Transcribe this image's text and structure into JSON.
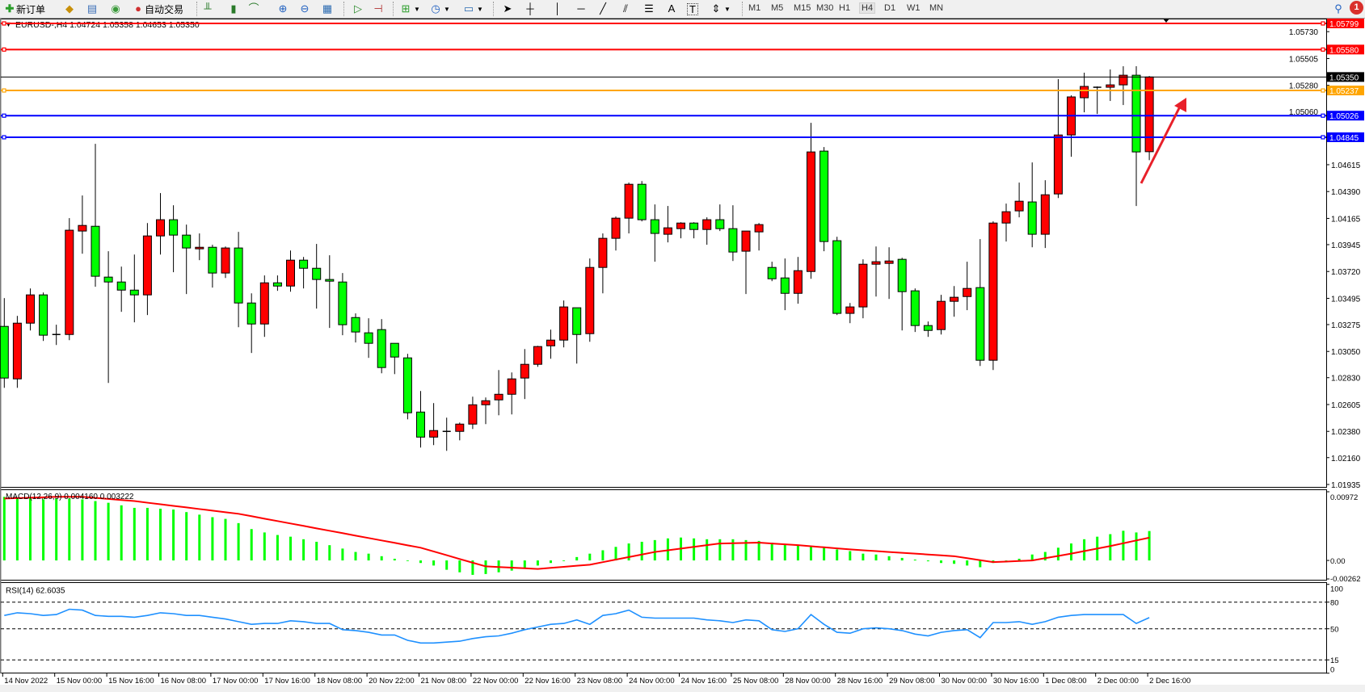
{
  "toolbar": {
    "new_order": "新订单",
    "auto_trading": "自动交易",
    "timeframes": [
      "M1",
      "M5",
      "M15",
      "M30",
      "H1",
      "H4",
      "D1",
      "W1",
      "MN"
    ],
    "selected_timeframe": "H4",
    "notifications": "1",
    "text_tool": "A",
    "label_tool": "T"
  },
  "chart": {
    "symbol_header": "EURUSD-,H4  1.04724 1.05358 1.04653 1.05350",
    "colors": {
      "bull": "#ff0000",
      "bear": "#00ff00",
      "wick": "#000000"
    },
    "price_ticks": [
      "1.05730",
      "1.05505",
      "1.05280",
      "1.05060",
      "1.04615",
      "1.04390",
      "1.04165",
      "1.03945",
      "1.03720",
      "1.03495",
      "1.03275",
      "1.03050",
      "1.02830",
      "1.02605",
      "1.02380",
      "1.02160",
      "1.01935"
    ],
    "levels": [
      {
        "label": "1.05799",
        "price": 1.05799,
        "color": "#ff0000"
      },
      {
        "label": "1.05580",
        "price": 1.0558,
        "color": "#ff0000"
      },
      {
        "label": "1.05237",
        "price": 1.05237,
        "color": "#ffa500"
      },
      {
        "label": "1.05026",
        "price": 1.05026,
        "color": "#0000ff"
      },
      {
        "label": "1.04845",
        "price": 1.04845,
        "color": "#0000ff"
      }
    ],
    "current_price": {
      "label": "1.05350",
      "price": 1.0535,
      "color": "#000000"
    },
    "annotation_arrow_color": "#e8202a",
    "time_labels": [
      "14 Nov 2022",
      "15 Nov 00:00",
      "15 Nov 16:00",
      "16 Nov 08:00",
      "17 Nov 00:00",
      "17 Nov 16:00",
      "18 Nov 08:00",
      "20 Nov 22:00",
      "21 Nov 08:00",
      "22 Nov 00:00",
      "22 Nov 16:00",
      "23 Nov 08:00",
      "24 Nov 00:00",
      "24 Nov 16:00",
      "25 Nov 08:00",
      "28 Nov 00:00",
      "28 Nov 16:00",
      "29 Nov 08:00",
      "30 Nov 00:00",
      "30 Nov 16:00",
      "1 Dec 08:00",
      "2 Dec 00:00",
      "2 Dec 16:00"
    ]
  },
  "chart_data": [
    {
      "type": "candlestick",
      "title": "EURUSD-,H4",
      "ylim": [
        1.01935,
        1.05799
      ],
      "ohlc": [
        [
          1.0326,
          1.03497,
          1.02745,
          1.02827
        ],
        [
          1.0282,
          1.03348,
          1.02745,
          1.03287
        ],
        [
          1.03287,
          1.03578,
          1.03226,
          1.03524
        ],
        [
          1.03524,
          1.03544,
          1.03138,
          1.03186
        ],
        [
          1.03192,
          1.03274,
          1.03104,
          1.03192
        ],
        [
          1.03192,
          1.04167,
          1.03145,
          1.04066
        ],
        [
          1.04059,
          1.04357,
          1.03869,
          1.04106
        ],
        [
          1.04099,
          1.0479,
          1.03592,
          1.0368
        ],
        [
          1.03673,
          1.0389,
          1.02786,
          1.03632
        ],
        [
          1.03632,
          1.03761,
          1.03382,
          1.03564
        ],
        [
          1.03564,
          1.03862,
          1.03294,
          1.03524
        ],
        [
          1.03524,
          1.04126,
          1.03355,
          1.04018
        ],
        [
          1.04018,
          1.04377,
          1.03862,
          1.04154
        ],
        [
          1.04154,
          1.04275,
          1.03714,
          1.04025
        ],
        [
          1.04025,
          1.04113,
          1.03531,
          1.03917
        ],
        [
          1.0391,
          1.04039,
          1.03815,
          1.03923
        ],
        [
          1.03923,
          1.03944,
          1.03585,
          1.03707
        ],
        [
          1.03707,
          1.0393,
          1.03666,
          1.03917
        ],
        [
          1.03917,
          1.04052,
          1.03253,
          1.03456
        ],
        [
          1.03456,
          1.03537,
          1.03037,
          1.0328
        ],
        [
          1.0328,
          1.03687,
          1.03172,
          1.03625
        ],
        [
          1.03625,
          1.03687,
          1.03558,
          1.03598
        ],
        [
          1.03598,
          1.03896,
          1.03551,
          1.03815
        ],
        [
          1.03815,
          1.03842,
          1.03578,
          1.03747
        ],
        [
          1.03747,
          1.03951,
          1.03409,
          1.03653
        ],
        [
          1.03653,
          1.03856,
          1.03247,
          1.03639
        ],
        [
          1.03632,
          1.03707,
          1.03186,
          1.03274
        ],
        [
          1.03334,
          1.03369,
          1.03125,
          1.03213
        ],
        [
          1.03206,
          1.03328,
          1.02996,
          1.03118
        ],
        [
          1.03233,
          1.03321,
          1.02867,
          1.02915
        ],
        [
          1.03118,
          1.03118,
          1.0286,
          1.03003
        ],
        [
          1.02996,
          1.0303,
          1.02481,
          1.02536
        ],
        [
          1.02542,
          1.02718,
          1.02245,
          1.02332
        ],
        [
          1.02332,
          1.02617,
          1.02265,
          1.02387
        ],
        [
          1.0238,
          1.02495,
          1.02217,
          1.0238
        ],
        [
          1.0238,
          1.02454,
          1.02305,
          1.02441
        ],
        [
          1.02441,
          1.02671,
          1.024,
          1.02603
        ],
        [
          1.02603,
          1.02664,
          1.02441,
          1.02637
        ],
        [
          1.02644,
          1.02894,
          1.02515,
          1.02691
        ],
        [
          1.02691,
          1.02874,
          1.02522,
          1.0282
        ],
        [
          1.02827,
          1.0307,
          1.02651,
          1.02942
        ],
        [
          1.02942,
          1.03097,
          1.02921,
          1.03091
        ],
        [
          1.03097,
          1.03233,
          1.02989,
          1.03145
        ],
        [
          1.03145,
          1.03477,
          1.03084,
          1.03423
        ],
        [
          1.03416,
          1.03416,
          1.02948,
          1.03192
        ],
        [
          1.03199,
          1.03829,
          1.03131,
          1.03754
        ],
        [
          1.03754,
          1.04039,
          1.03537,
          1.03998
        ],
        [
          1.03998,
          1.04181,
          1.03896,
          1.04167
        ],
        [
          1.04167,
          1.04465,
          1.04039,
          1.04451
        ],
        [
          1.04451,
          1.04478,
          1.0414,
          1.04154
        ],
        [
          1.04154,
          1.04282,
          1.03802,
          1.04039
        ],
        [
          1.04032,
          1.04269,
          1.03964,
          1.04086
        ],
        [
          1.04079,
          1.04133,
          1.03998,
          1.04126
        ],
        [
          1.04126,
          1.04133,
          1.03998,
          1.04072
        ],
        [
          1.04072,
          1.04174,
          1.03944,
          1.04154
        ],
        [
          1.04154,
          1.04282,
          1.04059,
          1.04079
        ],
        [
          1.04079,
          1.04275,
          1.03808,
          1.03883
        ],
        [
          1.0389,
          1.04059,
          1.03531,
          1.04059
        ],
        [
          1.04052,
          1.04126,
          1.03896,
          1.04113
        ],
        [
          1.03754,
          1.03802,
          1.03639,
          1.03659
        ],
        [
          1.03666,
          1.03829,
          1.03396,
          1.03537
        ],
        [
          1.03537,
          1.03842,
          1.0345,
          1.03727
        ],
        [
          1.0372,
          1.04966,
          1.03659,
          1.04722
        ],
        [
          1.04729,
          1.04763,
          1.0389,
          1.03971
        ],
        [
          1.03978,
          1.04011,
          1.03355,
          1.03369
        ],
        [
          1.03369,
          1.03456,
          1.03287,
          1.03423
        ],
        [
          1.03423,
          1.03822,
          1.03328,
          1.03781
        ],
        [
          1.03781,
          1.0393,
          1.0351,
          1.03802
        ],
        [
          1.03788,
          1.03923,
          1.0349,
          1.03808
        ],
        [
          1.03822,
          1.03835,
          1.03226,
          1.03551
        ],
        [
          1.03558,
          1.03578,
          1.03213,
          1.03267
        ],
        [
          1.03267,
          1.03301,
          1.03172,
          1.03226
        ],
        [
          1.03233,
          1.03524,
          1.03192,
          1.0347
        ],
        [
          1.0347,
          1.03598,
          1.03341,
          1.03504
        ],
        [
          1.0351,
          1.03802,
          1.03396,
          1.03578
        ],
        [
          1.03585,
          1.03991,
          1.02928,
          1.02976
        ],
        [
          1.02976,
          1.0414,
          1.02894,
          1.04126
        ],
        [
          1.04126,
          1.04289,
          1.03971,
          1.04221
        ],
        [
          1.04228,
          1.04465,
          1.04174,
          1.04309
        ],
        [
          1.04303,
          1.04634,
          1.03923,
          1.04032
        ],
        [
          1.04032,
          1.04485,
          1.03917,
          1.04363
        ],
        [
          1.0437,
          1.05332,
          1.04336,
          1.04864
        ],
        [
          1.04864,
          1.05196,
          1.04682,
          1.05183
        ],
        [
          1.05176,
          1.05386,
          1.05054,
          1.05271
        ],
        [
          1.05264,
          1.05271,
          1.0504,
          1.05257
        ],
        [
          1.05264,
          1.05413,
          1.05149,
          1.05284
        ],
        [
          1.05284,
          1.0544,
          1.05115,
          1.05365
        ],
        [
          1.05365,
          1.0544,
          1.04269,
          1.04722
        ],
        [
          1.04724,
          1.05358,
          1.04653,
          1.0535
        ]
      ]
    },
    {
      "type": "bar",
      "title": "MACD(12,26,9) 0.004160 0.003222",
      "ylim": [
        -0.00262,
        0.00972
      ],
      "tick_labels": [
        "0.00972",
        "0.00",
        "-0.00262"
      ],
      "series": [
        {
          "name": "MACD",
          "type": "bar",
          "color": "#00ff00",
          "values": [
            0.009,
            0.00888,
            0.00876,
            0.00864,
            0.00876,
            0.00876,
            0.00864,
            0.0084,
            0.00816,
            0.0078,
            0.00744,
            0.00744,
            0.00732,
            0.0072,
            0.00684,
            0.00648,
            0.00612,
            0.00588,
            0.00528,
            0.00444,
            0.00396,
            0.0036,
            0.00336,
            0.003,
            0.00264,
            0.00216,
            0.00168,
            0.0012,
            0.00096,
            0.0006,
            0.00024,
            0,
            -0.00036,
            -0.00072,
            -0.00132,
            -0.00168,
            -0.00204,
            -0.00192,
            -0.00168,
            -0.00144,
            -0.00108,
            -0.00072,
            -0.00036,
            0,
            0.00048,
            0.00096,
            0.00144,
            0.00192,
            0.0024,
            0.00264,
            0.00288,
            0.00312,
            0.00324,
            0.00312,
            0.003,
            0.003,
            0.003,
            0.00288,
            0.00276,
            0.00252,
            0.00228,
            0.00216,
            0.00204,
            0.0018,
            0.00156,
            0.00132,
            0.00096,
            0.00084,
            0.0006,
            0.00036,
            0.00012,
            -0.00012,
            -0.00036,
            -0.00048,
            -0.00072,
            -0.00096,
            -0.00036,
            0,
            0.00024,
            0.00084,
            0.0012,
            0.0018,
            0.0024,
            0.003,
            0.00336,
            0.00372,
            0.0042,
            0.00396,
            0.00416
          ]
        },
        {
          "name": "Signal",
          "type": "line",
          "color": "#ff0000",
          "values": [
            0.00876,
            0.00882,
            0.00888,
            0.00894,
            0.009,
            0.009,
            0.009,
            0.00885,
            0.0087,
            0.00855,
            0.0084,
            0.00817,
            0.00795,
            0.00772,
            0.0075,
            0.00727,
            0.00705,
            0.00682,
            0.0066,
            0.00626,
            0.00591,
            0.00557,
            0.00523,
            0.00489,
            0.00454,
            0.0042,
            0.00386,
            0.00351,
            0.00317,
            0.00283,
            0.00249,
            0.00214,
            0.0018,
            0.00127,
            0.00074,
            0.0002,
            -0.00032,
            -0.00084,
            -0.00093,
            -0.00102,
            -0.00111,
            -0.0012,
            -0.00105,
            -0.0009,
            -0.00075,
            -0.0006,
            -0.00024,
            0.00012,
            0.00048,
            0.00084,
            0.0012,
            0.00144,
            0.00168,
            0.00192,
            0.00216,
            0.0024,
            0.00244,
            0.00248,
            0.00252,
            0.0024,
            0.00228,
            0.00216,
            0.00201,
            0.00186,
            0.00171,
            0.00156,
            0.00144,
            0.00132,
            0.0012,
            0.00108,
            0.00096,
            0.00084,
            0.00072,
            0.0006,
            0.00032,
            4e-05,
            -0.00024,
            -0.00016,
            -8e-05,
            0,
            0.00032,
            0.00064,
            0.00096,
            0.00132,
            0.00168,
            0.00204,
            0.00243,
            0.00283,
            0.003222
          ]
        }
      ]
    },
    {
      "type": "line",
      "title": "RSI(14) 62.6035",
      "ylim": [
        0,
        100
      ],
      "tick_labels": [
        "100",
        "80",
        "50",
        "15",
        "0"
      ],
      "levels": [
        80,
        50,
        15
      ],
      "series": [
        {
          "name": "RSI",
          "color": "#1e90ff",
          "values": [
            65,
            68,
            67,
            65,
            66,
            72,
            71,
            65,
            64,
            64,
            63,
            65,
            68,
            67,
            65,
            65,
            63,
            61,
            58,
            55,
            56,
            56,
            59,
            58,
            56,
            56,
            49,
            48,
            46,
            43,
            43,
            37,
            34,
            34,
            35,
            36,
            39,
            41,
            42,
            45,
            49,
            52,
            55,
            56,
            60,
            55,
            65,
            67,
            71,
            63,
            62,
            62,
            62,
            62,
            60,
            59,
            57,
            60,
            59,
            49,
            47,
            50,
            66,
            55,
            46,
            45,
            50,
            51,
            50,
            48,
            44,
            42,
            46,
            48,
            49,
            40,
            57,
            57,
            58,
            55,
            58,
            63,
            65,
            66,
            66,
            66,
            66,
            56,
            62.6035
          ]
        }
      ]
    }
  ]
}
